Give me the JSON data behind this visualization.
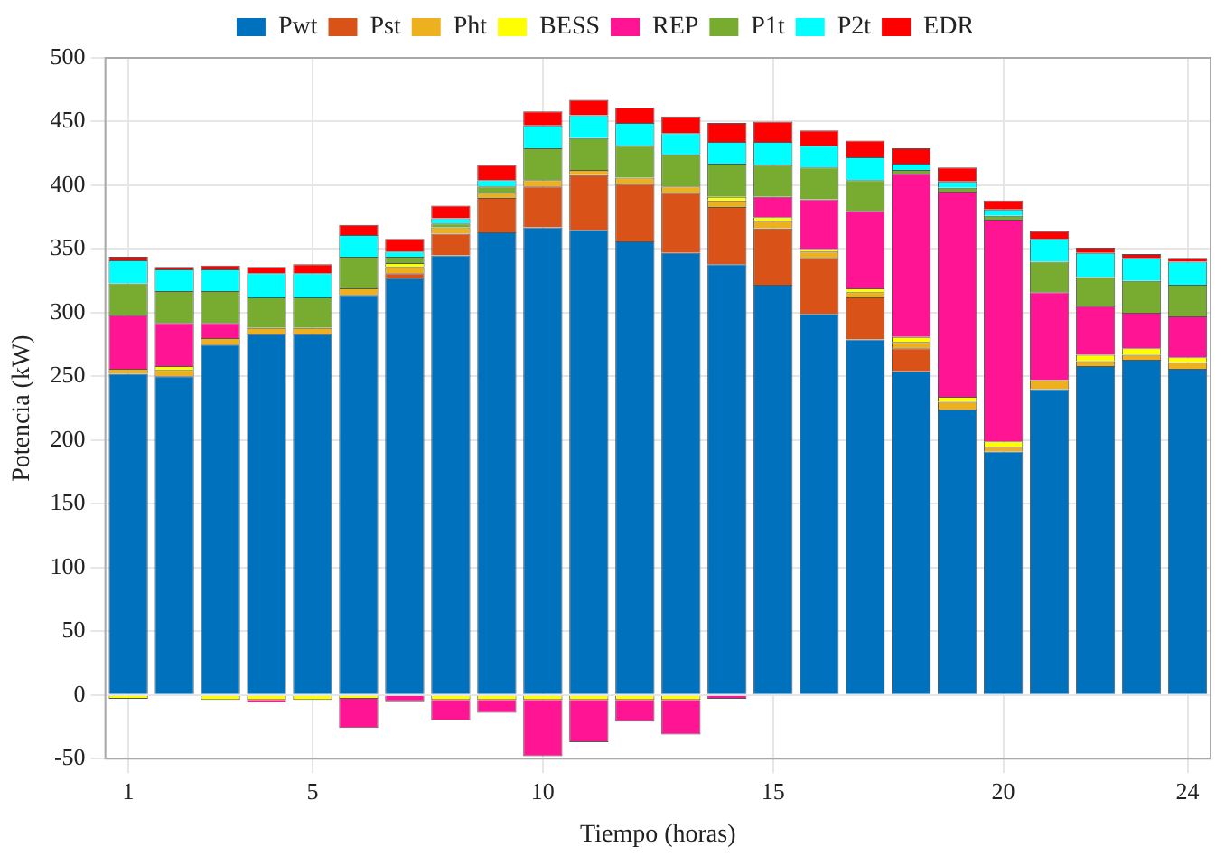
{
  "chart_data": {
    "type": "bar",
    "stacked": true,
    "xlabel": "Tiempo (horas)",
    "ylabel": "Potencia (kW)",
    "categories": [
      "1",
      null,
      null,
      null,
      "5",
      null,
      null,
      null,
      null,
      "10",
      null,
      null,
      null,
      null,
      "15",
      null,
      null,
      null,
      null,
      "20",
      null,
      null,
      null,
      "24"
    ],
    "ylim": [
      -50,
      500
    ],
    "yticks": [
      -50,
      0,
      50,
      100,
      150,
      200,
      250,
      300,
      350,
      400,
      450,
      500
    ],
    "grid": true,
    "legend": "top",
    "series": [
      {
        "name": "Pwt",
        "color": "#0072bd",
        "values": [
          252,
          250,
          275,
          283,
          283,
          314,
          327,
          345,
          363,
          367,
          365,
          356,
          347,
          338,
          322,
          299,
          279,
          254,
          224,
          191,
          240,
          258,
          263,
          256
        ]
      },
      {
        "name": "Pst",
        "color": "#d95319",
        "values": [
          0,
          0,
          0,
          0,
          0,
          0,
          4,
          17,
          27,
          32,
          43,
          45,
          47,
          45,
          44,
          44,
          33,
          18,
          0,
          0,
          0,
          0,
          0,
          0
        ]
      },
      {
        "name": "Pht",
        "color": "#edb120",
        "values": [
          4,
          5,
          5,
          5,
          5,
          5,
          5,
          5,
          4,
          5,
          4,
          5,
          5,
          5,
          6,
          5,
          4,
          5,
          6,
          4,
          7,
          4,
          4,
          5
        ]
      },
      {
        "name": "BESS",
        "color": "#ffff00",
        "values": [
          -3,
          3,
          -4,
          -4,
          -4,
          -3,
          3,
          -4,
          -4,
          -4,
          -4,
          -4,
          -4,
          3,
          3,
          2,
          3,
          4,
          4,
          4,
          null,
          5,
          5,
          4
        ]
      },
      {
        "name": "REP",
        "color": "#ff1493",
        "values": [
          42,
          34,
          12,
          -2,
          0,
          -23,
          -5,
          -16,
          -10,
          -44,
          -33,
          -17,
          -27,
          -3,
          16,
          39,
          61,
          128,
          161,
          174,
          69,
          38,
          28,
          32
        ]
      },
      {
        "name": "P1t",
        "color": "#77ac30",
        "values": [
          25,
          25,
          25,
          24,
          24,
          25,
          5,
          3,
          5,
          25,
          25,
          25,
          25,
          26,
          25,
          25,
          24,
          3,
          3,
          3,
          24,
          23,
          25,
          25
        ]
      },
      {
        "name": "P2t",
        "color": "#00ffff",
        "values": [
          18,
          17,
          17,
          19,
          19,
          17,
          4,
          4,
          5,
          18,
          18,
          18,
          17,
          17,
          18,
          17,
          18,
          5,
          5,
          5,
          18,
          19,
          18,
          18
        ]
      },
      {
        "name": "EDR",
        "color": "#ff0000",
        "values": [
          3,
          2,
          3,
          5,
          7,
          8,
          10,
          10,
          12,
          11,
          12,
          12,
          13,
          15,
          16,
          12,
          13,
          12,
          11,
          7,
          6,
          4,
          3,
          3
        ]
      }
    ]
  }
}
